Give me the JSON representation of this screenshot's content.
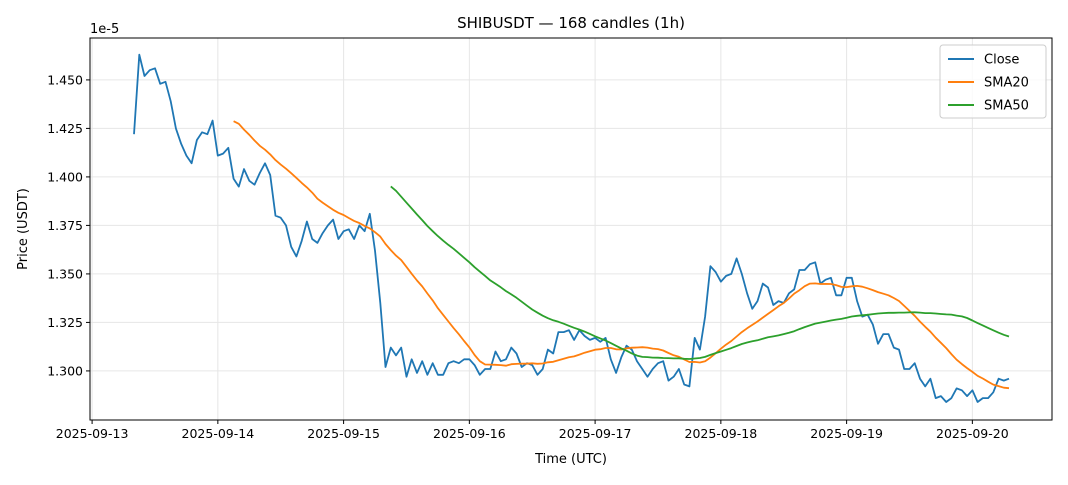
{
  "chart_data": {
    "type": "line",
    "title": "SHIBUSDT — 168 candles (1h)",
    "xlabel": "Time (UTC)",
    "ylabel": "Price (USDT)",
    "y_scale_label": "1e-5",
    "x_unit": "hours since 2025-09-13 00:00 UTC",
    "x_start_hour": 8,
    "x_step_hours": 1,
    "xlim": [
      -0.4,
      183.2
    ],
    "ylim": [
      1.2747,
      1.4716
    ],
    "grid": true,
    "legend_position": "top-right",
    "x_ticks": [
      {
        "hour": 0,
        "label": "2025-09-13"
      },
      {
        "hour": 24,
        "label": "2025-09-14"
      },
      {
        "hour": 48,
        "label": "2025-09-15"
      },
      {
        "hour": 72,
        "label": "2025-09-16"
      },
      {
        "hour": 96,
        "label": "2025-09-17"
      },
      {
        "hour": 120,
        "label": "2025-09-18"
      },
      {
        "hour": 144,
        "label": "2025-09-19"
      },
      {
        "hour": 168,
        "label": "2025-09-20"
      }
    ],
    "y_ticks": [
      {
        "value": 1.3,
        "label": "1.300"
      },
      {
        "value": 1.325,
        "label": "1.325"
      },
      {
        "value": 1.35,
        "label": "1.350"
      },
      {
        "value": 1.375,
        "label": "1.375"
      },
      {
        "value": 1.4,
        "label": "1.400"
      },
      {
        "value": 1.425,
        "label": "1.425"
      },
      {
        "value": 1.45,
        "label": "1.450"
      }
    ],
    "series": [
      {
        "name": "Close",
        "color": "#1f77b4",
        "kind": "close",
        "values": [
          1.422,
          1.463,
          1.452,
          1.455,
          1.456,
          1.448,
          1.449,
          1.439,
          1.425,
          1.417,
          1.411,
          1.407,
          1.419,
          1.423,
          1.422,
          1.429,
          1.411,
          1.412,
          1.415,
          1.399,
          1.395,
          1.404,
          1.398,
          1.396,
          1.402,
          1.407,
          1.401,
          1.38,
          1.379,
          1.375,
          1.364,
          1.359,
          1.367,
          1.377,
          1.368,
          1.366,
          1.371,
          1.375,
          1.378,
          1.368,
          1.372,
          1.373,
          1.368,
          1.375,
          1.372,
          1.381,
          1.362,
          1.335,
          1.302,
          1.312,
          1.308,
          1.312,
          1.297,
          1.306,
          1.299,
          1.305,
          1.298,
          1.304,
          1.298,
          1.298,
          1.304,
          1.305,
          1.304,
          1.306,
          1.306,
          1.303,
          1.298,
          1.301,
          1.301,
          1.31,
          1.305,
          1.306,
          1.312,
          1.309,
          1.302,
          1.304,
          1.303,
          1.298,
          1.301,
          1.311,
          1.309,
          1.32,
          1.32,
          1.321,
          1.316,
          1.321,
          1.318,
          1.316,
          1.317,
          1.315,
          1.317,
          1.306,
          1.299,
          1.307,
          1.313,
          1.311,
          1.305,
          1.301,
          1.297,
          1.301,
          1.304,
          1.305,
          1.295,
          1.297,
          1.301,
          1.293,
          1.292,
          1.317,
          1.311,
          1.328,
          1.354,
          1.351,
          1.346,
          1.349,
          1.35,
          1.358,
          1.35,
          1.34,
          1.332,
          1.336,
          1.345,
          1.343,
          1.334,
          1.336,
          1.335,
          1.34,
          1.342,
          1.352,
          1.352,
          1.355,
          1.356,
          1.345,
          1.347,
          1.348,
          1.339,
          1.339,
          1.348,
          1.348,
          1.336,
          1.328,
          1.329,
          1.324,
          1.314,
          1.319,
          1.319,
          1.312,
          1.311,
          1.301,
          1.301,
          1.304,
          1.296,
          1.292,
          1.296,
          1.286,
          1.287,
          1.284,
          1.286,
          1.291,
          1.29,
          1.287,
          1.29,
          1.284,
          1.286,
          1.286,
          1.289,
          1.296,
          1.295,
          1.296
        ]
      },
      {
        "name": "SMA20",
        "color": "#ff7f0e",
        "kind": "sma",
        "window": 20
      },
      {
        "name": "SMA50",
        "color": "#2ca02c",
        "kind": "sma",
        "window": 50
      }
    ]
  }
}
